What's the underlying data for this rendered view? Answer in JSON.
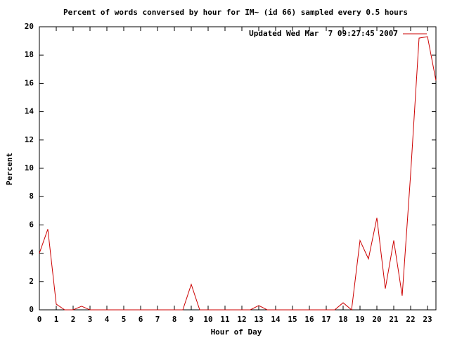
{
  "chart_data": {
    "type": "line",
    "title": "Percent of words conversed by hour for IM~ (id 66) sampled every 0.5 hours",
    "x_label": "Hour of Day",
    "y_label": "Percent",
    "x": [
      0,
      0.5,
      1,
      1.5,
      2,
      2.5,
      3,
      3.5,
      4,
      4.5,
      5,
      5.5,
      6,
      6.5,
      7,
      7.5,
      8,
      8.5,
      9,
      9.5,
      10,
      10.5,
      11,
      11.5,
      12,
      12.5,
      13,
      13.5,
      14,
      14.5,
      15,
      15.5,
      16,
      16.5,
      17,
      17.5,
      18,
      18.5,
      19,
      19.5,
      20,
      20.5,
      21,
      21.5,
      22,
      22.5,
      23,
      23.5
    ],
    "series": [
      {
        "name": "Updated Wed Mar  7 09:27:45 2007",
        "color": "#cc0000",
        "values": [
          4.0,
          5.7,
          0.4,
          0,
          0,
          0.25,
          0,
          0,
          0,
          0,
          0,
          0,
          0,
          0,
          0,
          0,
          0,
          0,
          1.8,
          0,
          0,
          0,
          0,
          0,
          0,
          0,
          0.3,
          0,
          0,
          0,
          0,
          0,
          0,
          0,
          0,
          0,
          0.5,
          0,
          4.9,
          3.6,
          6.5,
          1.5,
          4.9,
          1.0,
          9.6,
          19.2,
          19.3,
          16.2
        ]
      }
    ],
    "xlim": [
      0,
      23.5
    ],
    "ylim": [
      0,
      20
    ],
    "xticks": [
      0,
      1,
      2,
      3,
      4,
      5,
      6,
      7,
      8,
      9,
      10,
      11,
      12,
      13,
      14,
      15,
      16,
      17,
      18,
      19,
      20,
      21,
      22,
      23
    ],
    "yticks": [
      0,
      2,
      4,
      6,
      8,
      10,
      12,
      14,
      16,
      18,
      20
    ],
    "legend": "top-right"
  }
}
